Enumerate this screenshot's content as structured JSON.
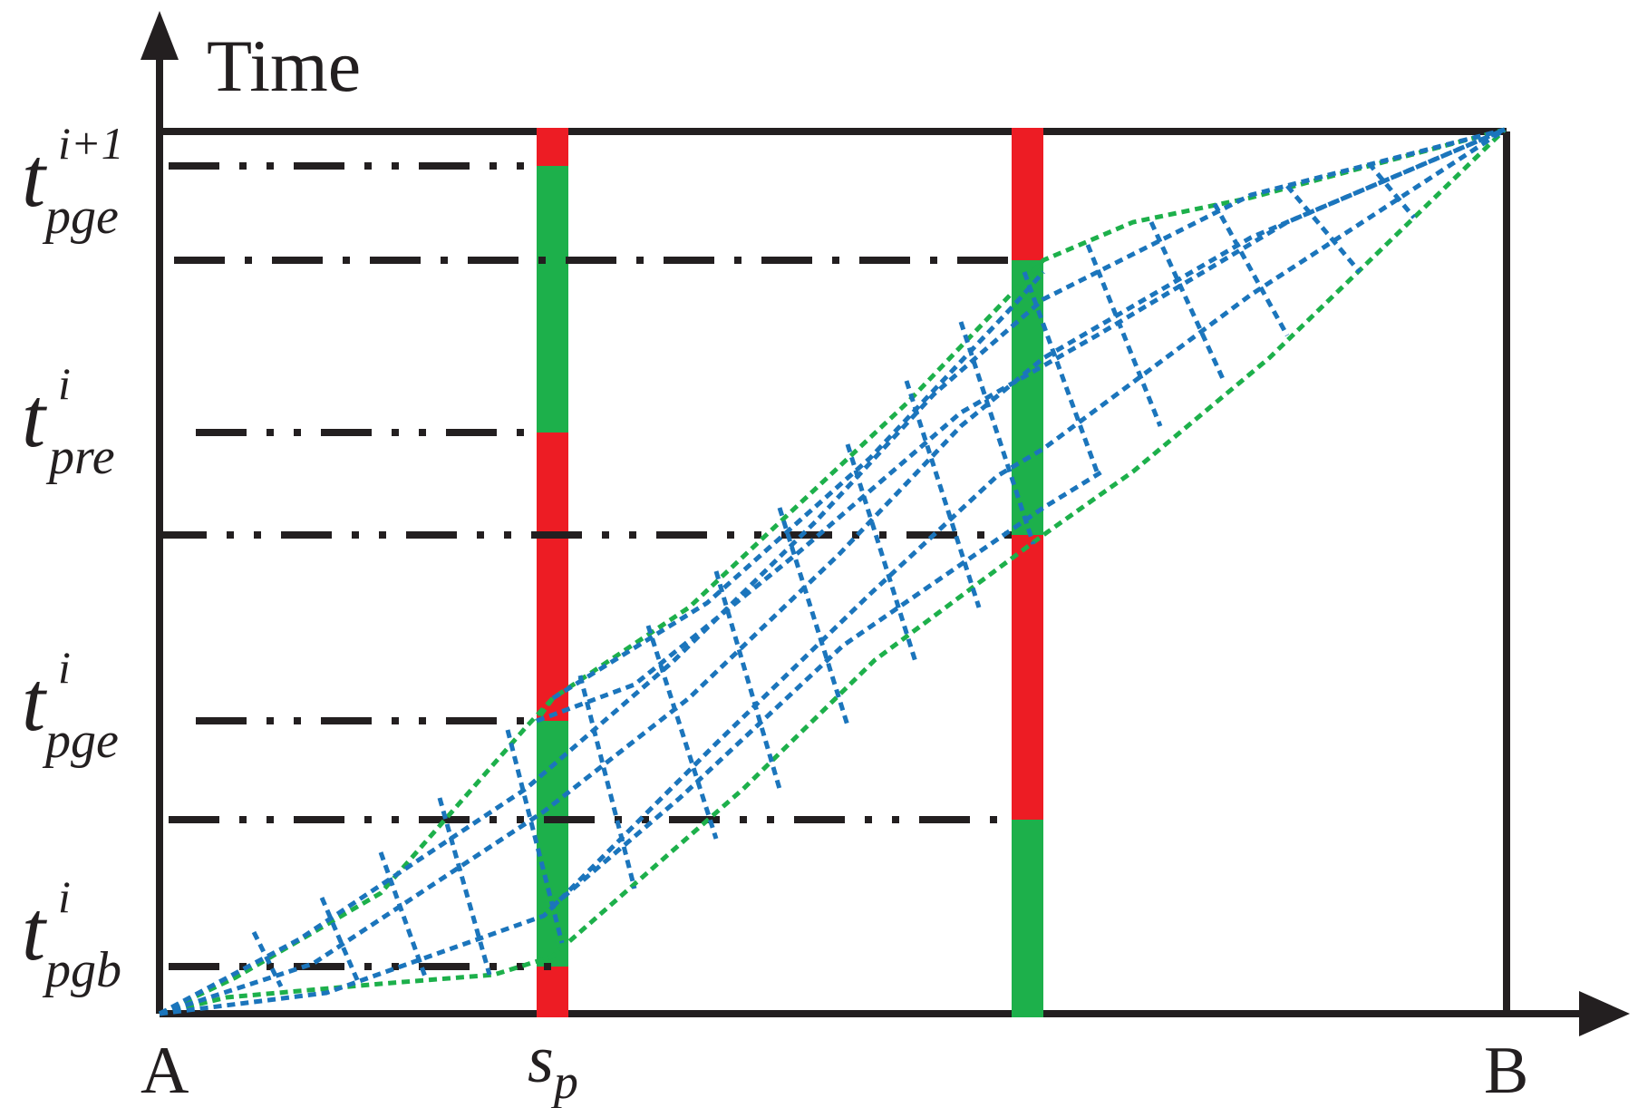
{
  "y_axis_label": "Time",
  "x_labels": {
    "origin": "A",
    "end": "B",
    "position_main": "s",
    "position_sub": "p"
  },
  "time_labels": [
    {
      "key": "pge_next",
      "main": "t",
      "sup": "i+1",
      "sub": "pge"
    },
    {
      "key": "pre",
      "main": "t",
      "sup": "i",
      "sub": "pre"
    },
    {
      "key": "pge",
      "main": "t",
      "sup": "i",
      "sub": "pge"
    },
    {
      "key": "pgb",
      "main": "t",
      "sup": "i",
      "sub": "pgb"
    }
  ],
  "colors": {
    "axis": "#231f20",
    "red_phase": "#ed1c24",
    "green_phase": "#1db04b",
    "envelope": "#1db04b",
    "trajectories": "#1b75bc"
  }
}
